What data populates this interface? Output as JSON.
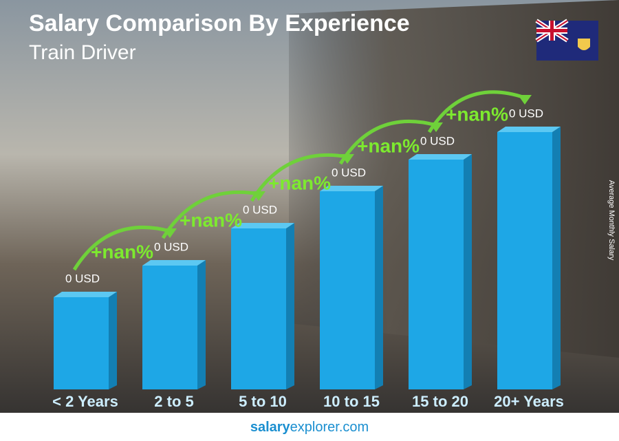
{
  "chart_data": {
    "type": "bar",
    "title": "Salary Comparison By Experience",
    "subtitle": "Train Driver",
    "y_axis_label": "Average Monthly Salary",
    "categories": [
      "< 2 Years",
      "2 to 5",
      "5 to 10",
      "10 to 15",
      "15 to 20",
      "20+ Years"
    ],
    "values": [
      0,
      0,
      0,
      0,
      0,
      0
    ],
    "value_labels": [
      "0 USD",
      "0 USD",
      "0 USD",
      "0 USD",
      "0 USD",
      "0 USD"
    ],
    "change_labels": [
      "+nan%",
      "+nan%",
      "+nan%",
      "+nan%",
      "+nan%"
    ],
    "color": "#1ea7e6",
    "footer": [
      "salary",
      "explorer",
      ".com"
    ]
  }
}
